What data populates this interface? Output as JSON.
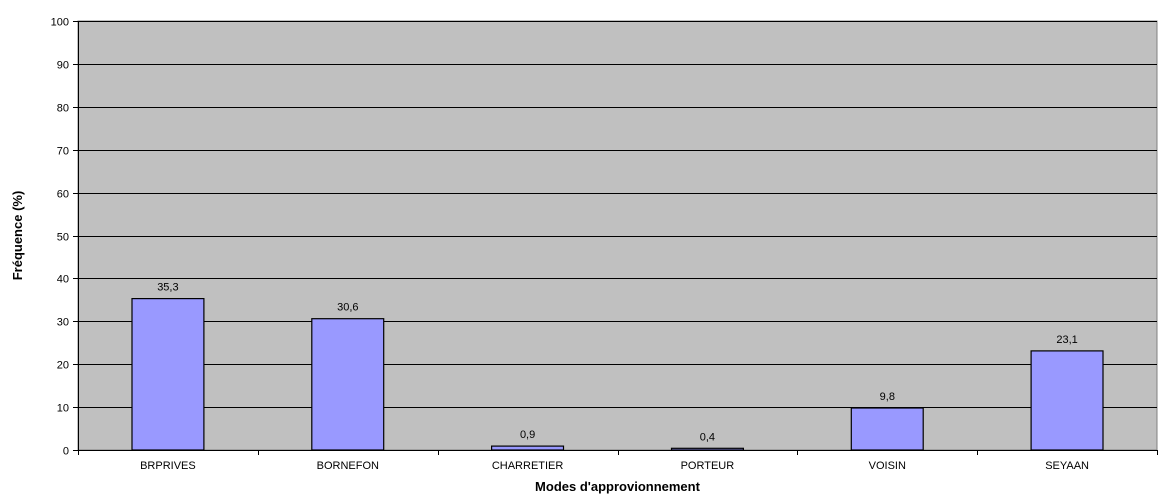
{
  "chart_data": {
    "type": "bar",
    "title": "",
    "xlabel": "Modes d'approvionnement",
    "ylabel": "Fréquence (%)",
    "categories": [
      "BRPRIVES",
      "BORNEFON",
      "CHARRETIER",
      "PORTEUR",
      "VOISIN",
      "SEYAAN"
    ],
    "values": [
      35.3,
      30.6,
      0.9,
      0.4,
      9.8,
      23.1
    ],
    "data_labels": [
      "35,3",
      "30,6",
      "0,9",
      "0,4",
      "9,8",
      "23,1"
    ],
    "ylim": [
      0,
      100
    ],
    "yticks": [
      0,
      10,
      20,
      30,
      40,
      50,
      60,
      70,
      80,
      90,
      100
    ],
    "grid": true,
    "legend": "none",
    "colors": {
      "plot_background": "#c0c0c0",
      "bar_fill": "#9999ff",
      "bar_stroke": "#000000",
      "gridline": "#000000"
    }
  }
}
